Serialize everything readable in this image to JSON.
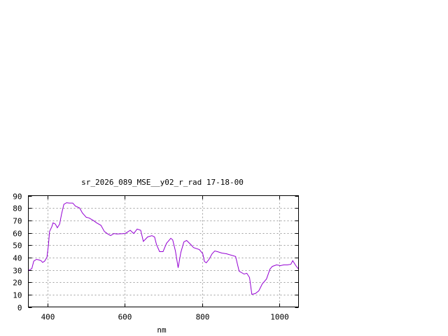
{
  "chart_data": {
    "type": "line",
    "title": "sr_2026_089_MSE__y02_r_rad 17-18-00",
    "xlabel": "nm",
    "ylabel": "",
    "xlim": [
      350,
      1050
    ],
    "ylim": [
      0,
      90
    ],
    "xticks": [
      400,
      600,
      800,
      1000
    ],
    "yticks": [
      0,
      10,
      20,
      30,
      40,
      50,
      60,
      70,
      80,
      90
    ],
    "grid": true,
    "line_color": "#9400d3",
    "series": [
      {
        "x": [
          350,
          359,
          364,
          371,
          378,
          383,
          387,
          392,
          398,
          402,
          405,
          411,
          414,
          420,
          425,
          431,
          436,
          442,
          449,
          456,
          465,
          472,
          483,
          490,
          500,
          507,
          518,
          527,
          538,
          547,
          556,
          563,
          572,
          579,
          601,
          614,
          623,
          632,
          641,
          648,
          659,
          670,
          677,
          682,
          690,
          699,
          708,
          719,
          724,
          731,
          738,
          745,
          753,
          760,
          771,
          778,
          793,
          802,
          806,
          811,
          818,
          826,
          833,
          840,
          851,
          863,
          887,
          896,
          909,
          916,
          923,
          929,
          938,
          947,
          956,
          967,
          976,
          982,
          993,
          1003,
          1012,
          1021,
          1030,
          1035,
          1043,
          1050
        ],
        "y": [
          29.4,
          31,
          37,
          38.5,
          38,
          37.4,
          36,
          37,
          40,
          50,
          61,
          65,
          68,
          67,
          64,
          67,
          75,
          83,
          84.3,
          84,
          84,
          81.5,
          80,
          76,
          72.5,
          72,
          70,
          68,
          66,
          61,
          59,
          57.7,
          59.4,
          59,
          59.4,
          62,
          59.4,
          63,
          62,
          53,
          56.6,
          57.7,
          56.6,
          50.4,
          44.7,
          44.7,
          51.5,
          55.5,
          54.3,
          45.3,
          31.7,
          44,
          52.6,
          53.8,
          50.4,
          48,
          46.4,
          43,
          36.8,
          35.7,
          38.5,
          43,
          45.3,
          44.7,
          43.6,
          43,
          40.8,
          28.9,
          26.6,
          27.2,
          23.8,
          10.2,
          10.8,
          13,
          18.7,
          22.6,
          30.6,
          32.8,
          34,
          33.4,
          34,
          34,
          34.5,
          37.4,
          33.4,
          30.6
        ]
      }
    ]
  }
}
